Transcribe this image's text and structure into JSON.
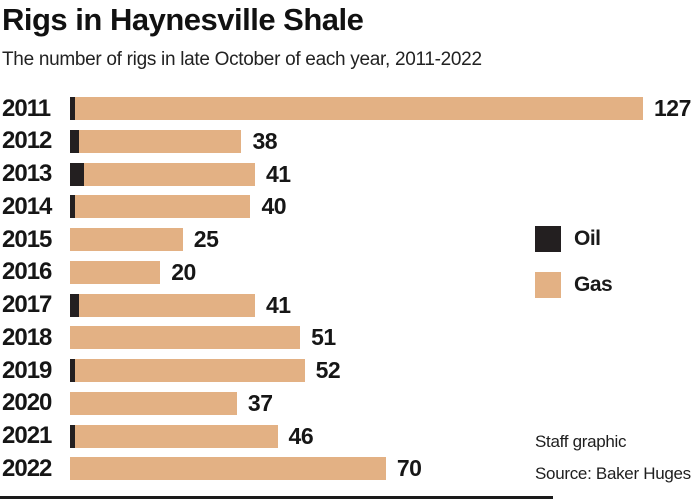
{
  "header": {
    "title": "Rigs in Haynesville Shale",
    "subtitle": "The number of rigs in late October of each year, 2011-2022"
  },
  "legend": {
    "oil_label": "Oil",
    "gas_label": "Gas"
  },
  "footer": {
    "credit": "Staff graphic",
    "source": "Source: Baker Huges"
  },
  "colors": {
    "oil": "#231f20",
    "gas": "#e3b184",
    "text": "#1a1a1a"
  },
  "chart_data": {
    "type": "bar",
    "orientation": "horizontal",
    "stacked": true,
    "title": "Rigs in Haynesville Shale",
    "subtitle": "The number of rigs in late October of each year, 2011-2022",
    "categories": [
      "2011",
      "2012",
      "2013",
      "2014",
      "2015",
      "2016",
      "2017",
      "2018",
      "2019",
      "2020",
      "2021",
      "2022"
    ],
    "series": [
      {
        "name": "Oil",
        "values": [
          1,
          2,
          3,
          1,
          0,
          0,
          2,
          0,
          1,
          0,
          1,
          0
        ]
      },
      {
        "name": "Gas",
        "values": [
          126,
          36,
          38,
          39,
          25,
          20,
          39,
          51,
          51,
          37,
          45,
          70
        ]
      }
    ],
    "totals": [
      127,
      38,
      41,
      40,
      25,
      20,
      41,
      51,
      52,
      37,
      46,
      70
    ],
    "value_labels": [
      "127",
      "38",
      "41",
      "40",
      "25",
      "20",
      "41",
      "51",
      "52",
      "37",
      "46",
      "70"
    ],
    "xlim": [
      0,
      127
    ],
    "value_label_position": "end-of-bar",
    "legend_position": "right",
    "grid": false
  }
}
